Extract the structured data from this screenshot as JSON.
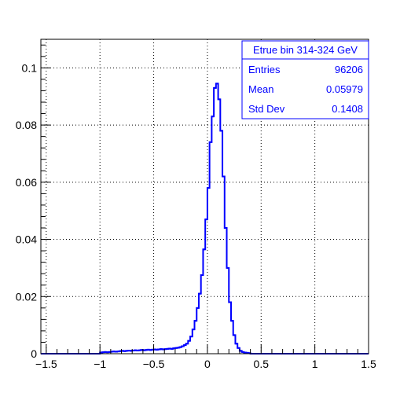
{
  "chart_data": {
    "type": "bar",
    "title": "",
    "xlabel": "",
    "ylabel": "",
    "xlim": [
      -1.55,
      1.5
    ],
    "ylim": [
      0,
      0.11
    ],
    "grid": true,
    "x_ticks": [
      -1.5,
      -1,
      -0.5,
      0,
      0.5,
      1,
      1.5
    ],
    "x_tick_labels": [
      "−1.5",
      "−1",
      "−0.5",
      "0",
      "0.5",
      "1",
      "1.5"
    ],
    "y_ticks": [
      0,
      0.02,
      0.04,
      0.06,
      0.08,
      0.1
    ],
    "y_tick_labels": [
      "0",
      "0.02",
      "0.04",
      "0.06",
      "0.08",
      "0.1"
    ],
    "bin_width": 0.02,
    "series": [
      {
        "style": "step",
        "color": "#0000ff",
        "bins": [
          [
            -1.0,
            0.0004
          ],
          [
            -0.98,
            0.0005
          ],
          [
            -0.96,
            0.0006
          ],
          [
            -0.94,
            0.0005
          ],
          [
            -0.92,
            0.0006
          ],
          [
            -0.9,
            0.0007
          ],
          [
            -0.88,
            0.0008
          ],
          [
            -0.86,
            0.0007
          ],
          [
            -0.84,
            0.0008
          ],
          [
            -0.82,
            0.0009
          ],
          [
            -0.8,
            0.001
          ],
          [
            -0.78,
            0.0009
          ],
          [
            -0.76,
            0.001
          ],
          [
            -0.74,
            0.0011
          ],
          [
            -0.72,
            0.001
          ],
          [
            -0.7,
            0.0011
          ],
          [
            -0.68,
            0.0012
          ],
          [
            -0.66,
            0.0011
          ],
          [
            -0.64,
            0.0012
          ],
          [
            -0.62,
            0.0013
          ],
          [
            -0.6,
            0.0012
          ],
          [
            -0.58,
            0.0013
          ],
          [
            -0.56,
            0.0014
          ],
          [
            -0.54,
            0.0013
          ],
          [
            -0.52,
            0.0014
          ],
          [
            -0.5,
            0.0015
          ],
          [
            -0.48,
            0.0014
          ],
          [
            -0.46,
            0.0015
          ],
          [
            -0.44,
            0.0016
          ],
          [
            -0.42,
            0.0015
          ],
          [
            -0.4,
            0.0016
          ],
          [
            -0.38,
            0.0017
          ],
          [
            -0.36,
            0.0018
          ],
          [
            -0.34,
            0.0017
          ],
          [
            -0.32,
            0.0019
          ],
          [
            -0.3,
            0.002
          ],
          [
            -0.28,
            0.0021
          ],
          [
            -0.26,
            0.0023
          ],
          [
            -0.24,
            0.0026
          ],
          [
            -0.22,
            0.003
          ],
          [
            -0.2,
            0.0035
          ],
          [
            -0.18,
            0.0045
          ],
          [
            -0.16,
            0.006
          ],
          [
            -0.14,
            0.0085
          ],
          [
            -0.12,
            0.0115
          ],
          [
            -0.1,
            0.016
          ],
          [
            -0.08,
            0.021
          ],
          [
            -0.06,
            0.0275
          ],
          [
            -0.04,
            0.0365
          ],
          [
            -0.02,
            0.047
          ],
          [
            0.0,
            0.058
          ],
          [
            0.02,
            0.074
          ],
          [
            0.04,
            0.083
          ],
          [
            0.06,
            0.093
          ],
          [
            0.08,
            0.0945
          ],
          [
            0.1,
            0.089
          ],
          [
            0.12,
            0.078
          ],
          [
            0.14,
            0.062
          ],
          [
            0.16,
            0.044
          ],
          [
            0.18,
            0.03
          ],
          [
            0.2,
            0.018
          ],
          [
            0.22,
            0.0115
          ],
          [
            0.24,
            0.0065
          ],
          [
            0.26,
            0.0035
          ],
          [
            0.28,
            0.002
          ],
          [
            0.3,
            0.001
          ],
          [
            0.32,
            0.0006
          ],
          [
            0.34,
            0.0004
          ],
          [
            0.36,
            0.0003
          ],
          [
            0.38,
            0.0002
          ]
        ]
      }
    ]
  },
  "stats_box": {
    "title": "Etrue bin 314-324 GeV",
    "rows": [
      {
        "label": "Entries",
        "value": "96206"
      },
      {
        "label": "Mean",
        "value": "0.05979"
      },
      {
        "label": "Std Dev",
        "value": "0.1408"
      }
    ]
  }
}
